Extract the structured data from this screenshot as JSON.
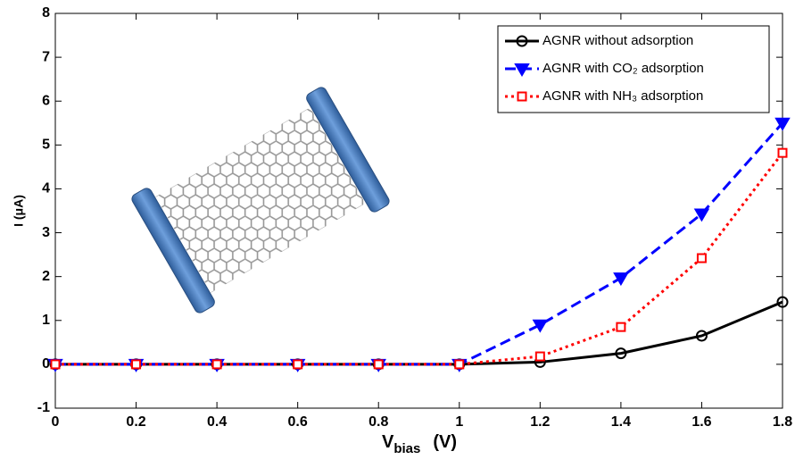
{
  "chart_data": {
    "type": "line",
    "xlabel": [
      "V",
      "bias",
      "(V)"
    ],
    "ylabel": "I (μA)",
    "x": [
      0,
      0.2,
      0.4,
      0.6,
      0.8,
      1,
      1.2,
      1.4,
      1.6,
      1.8
    ],
    "series": [
      {
        "name": "AGNR without adsorption",
        "color": "#000000",
        "marker": "circle",
        "linestyle": "solid",
        "values": [
          0,
          0,
          0,
          0,
          0,
          0,
          0.05,
          0.25,
          0.65,
          1.42
        ]
      },
      {
        "name": "AGNR with CO₂ adsorption",
        "color": "#0000ff",
        "marker": "triangle-down",
        "linestyle": "dashed",
        "values": [
          0,
          0,
          0,
          0,
          0,
          0,
          0.9,
          1.97,
          3.43,
          5.5
        ]
      },
      {
        "name": "AGNR with NH₃ adsorption",
        "color": "#ff0000",
        "marker": "square",
        "linestyle": "dotted",
        "values": [
          0,
          0,
          0,
          0,
          0,
          0,
          0.18,
          0.85,
          2.42,
          4.82
        ]
      }
    ],
    "xlim": [
      0,
      1.8
    ],
    "xticks": [
      0,
      0.2,
      0.4,
      0.6,
      0.8,
      1,
      1.2,
      1.4,
      1.6,
      1.8
    ],
    "ylim": [
      -1,
      8
    ],
    "yticks": [
      -1,
      0,
      1,
      2,
      3,
      4,
      5,
      6,
      7,
      8
    ],
    "grid": false,
    "legend": "upper-right"
  }
}
